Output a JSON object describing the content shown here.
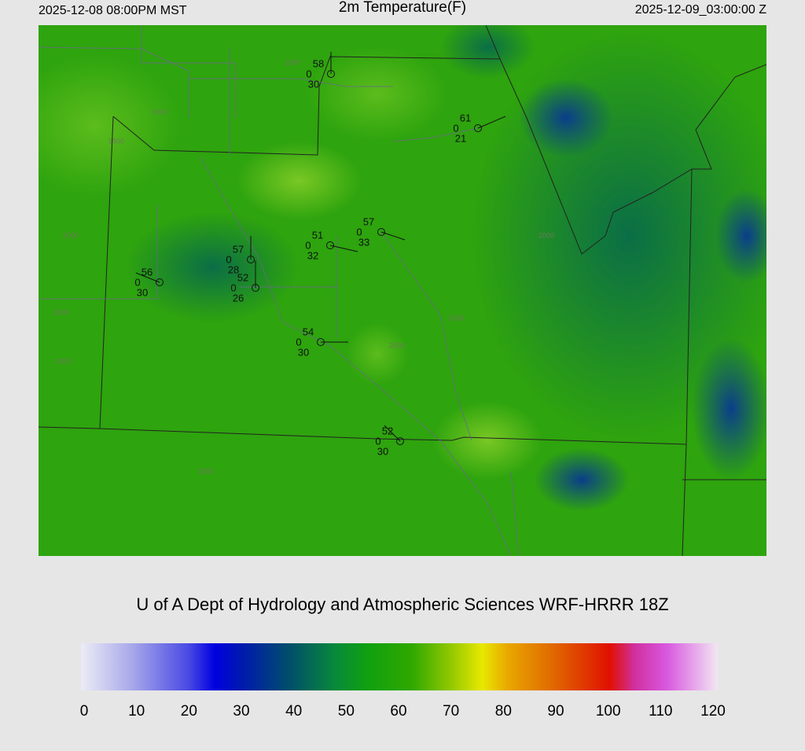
{
  "header": {
    "left": "2025-12-08 08:00PM MST",
    "title": "2m Temperature(F)",
    "right": "2025-12-09_03:00:00 Z"
  },
  "stations": [
    {
      "temp": 58,
      "mid": 0,
      "dew": 30
    },
    {
      "temp": 61,
      "mid": 0,
      "dew": 21
    },
    {
      "temp": 57,
      "mid": 0,
      "dew": 33
    },
    {
      "temp": 51,
      "mid": 0,
      "dew": 32
    },
    {
      "temp": 57,
      "mid": 0,
      "dew": 28
    },
    {
      "temp": 52,
      "mid": 0,
      "dew": 26
    },
    {
      "temp": 56,
      "mid": 0,
      "dew": 30
    },
    {
      "temp": 54,
      "mid": 0,
      "dew": 30
    },
    {
      "temp": 52,
      "mid": 0,
      "dew": 30
    }
  ],
  "contour_labels": [
    "1500",
    "1500",
    "1500",
    "2000",
    "2000",
    "2000",
    "2000",
    "2000",
    "2500",
    "2500"
  ],
  "footer": "U of A Dept of Hydrology and Atmospheric Sciences WRF-HRRR 18Z",
  "colorbar": {
    "ticks": [
      0,
      10,
      20,
      30,
      40,
      50,
      60,
      70,
      80,
      90,
      100,
      110,
      120
    ]
  }
}
